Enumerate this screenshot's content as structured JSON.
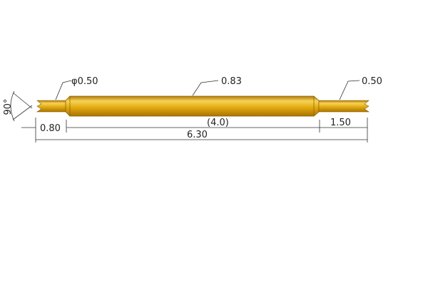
{
  "drawing": {
    "angle_label": "90°",
    "left_tip_diameter": "φ0.50",
    "barrel_diameter": "0.83",
    "right_tip_diameter": "0.50",
    "left_tip_length": "0.80",
    "barrel_length": "(4.0)",
    "right_tip_length": "1.50",
    "total_length": "6.30",
    "colors": {
      "gold": "#e5ac10",
      "gold_light": "#f6d35a",
      "gold_dark": "#b07c05",
      "line": "#333333"
    }
  }
}
